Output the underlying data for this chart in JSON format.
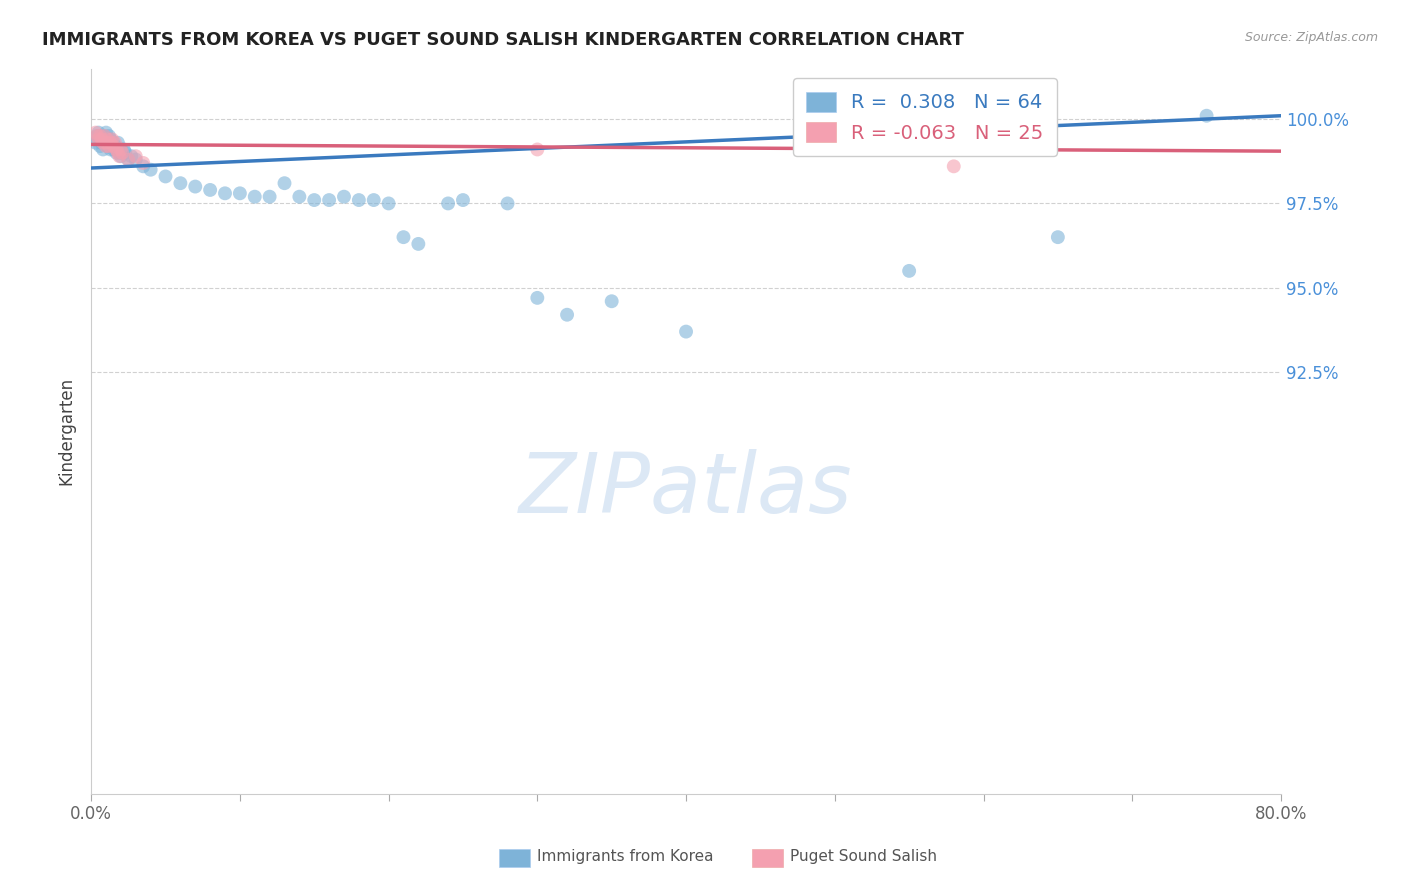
{
  "title": "IMMIGRANTS FROM KOREA VS PUGET SOUND SALISH KINDERGARTEN CORRELATION CHART",
  "source_text": "Source: ZipAtlas.com",
  "ylabel": "Kindergarten",
  "legend_label1": "Immigrants from Korea",
  "legend_label2": "Puget Sound Salish",
  "R1": 0.308,
  "N1": 64,
  "R2": -0.063,
  "N2": 25,
  "xlim": [
    0.0,
    80.0
  ],
  "ylim": [
    80.0,
    101.5
  ],
  "ytick_positions": [
    92.5,
    95.0,
    97.5,
    100.0
  ],
  "ytick_labels": [
    "92.5%",
    "95.0%",
    "97.5%",
    "100.0%"
  ],
  "xticks": [
    0.0,
    10.0,
    20.0,
    30.0,
    40.0,
    50.0,
    60.0,
    70.0,
    80.0
  ],
  "xtick_labels": [
    "0.0%",
    "",
    "",
    "",
    "",
    "",
    "",
    "",
    "80.0%"
  ],
  "blue_color": "#7eb3d8",
  "pink_color": "#f4a0b0",
  "blue_line_color": "#3a7abf",
  "pink_line_color": "#d9607a",
  "grid_color": "#cccccc",
  "title_color": "#222222",
  "axis_label_color": "#444444",
  "right_tick_color": "#4a90d9",
  "watermark_color": "#dce8f5",
  "blue_x": [
    0.3,
    0.4,
    0.5,
    0.5,
    0.6,
    0.6,
    0.7,
    0.8,
    0.8,
    0.9,
    1.0,
    1.0,
    1.1,
    1.1,
    1.2,
    1.2,
    1.3,
    1.3,
    1.4,
    1.5,
    1.5,
    1.6,
    1.7,
    1.8,
    1.8,
    1.9,
    2.0,
    2.0,
    2.1,
    2.2,
    2.3,
    2.5,
    2.7,
    3.0,
    3.5,
    4.0,
    5.0,
    6.0,
    7.0,
    8.0,
    9.0,
    10.0,
    11.0,
    12.0,
    13.0,
    14.0,
    15.0,
    16.0,
    17.0,
    18.0,
    19.0,
    20.0,
    21.0,
    22.0,
    24.0,
    25.0,
    28.0,
    30.0,
    32.0,
    35.0,
    40.0,
    55.0,
    65.0,
    75.0
  ],
  "blue_y": [
    99.3,
    99.5,
    99.4,
    99.6,
    99.2,
    99.5,
    99.3,
    99.1,
    99.4,
    99.5,
    99.3,
    99.6,
    99.2,
    99.4,
    99.3,
    99.5,
    99.1,
    99.4,
    99.2,
    99.3,
    99.1,
    99.2,
    99.0,
    99.1,
    99.3,
    99.0,
    99.1,
    98.9,
    99.0,
    99.1,
    99.0,
    98.8,
    98.9,
    98.8,
    98.6,
    98.5,
    98.3,
    98.1,
    98.0,
    97.9,
    97.8,
    97.8,
    97.7,
    97.7,
    98.1,
    97.7,
    97.6,
    97.6,
    97.7,
    97.6,
    97.6,
    97.5,
    96.5,
    96.3,
    97.5,
    97.6,
    97.5,
    94.7,
    94.2,
    94.6,
    93.7,
    95.5,
    96.5,
    100.1
  ],
  "pink_x": [
    0.3,
    0.4,
    0.5,
    0.6,
    0.7,
    0.8,
    0.9,
    1.0,
    1.0,
    1.1,
    1.2,
    1.3,
    1.4,
    1.5,
    1.6,
    1.7,
    1.8,
    1.9,
    2.0,
    2.1,
    2.5,
    3.0,
    3.5,
    30.0,
    58.0
  ],
  "pink_y": [
    99.6,
    99.5,
    99.4,
    99.5,
    99.4,
    99.3,
    99.5,
    99.3,
    99.2,
    99.4,
    99.2,
    99.3,
    99.4,
    99.2,
    99.3,
    99.1,
    99.0,
    98.9,
    99.1,
    99.0,
    98.8,
    98.9,
    98.7,
    99.1,
    98.6
  ],
  "blue_trend_x": [
    0.0,
    80.0
  ],
  "blue_trend_y": [
    98.55,
    100.1
  ],
  "pink_trend_x": [
    0.0,
    80.0
  ],
  "pink_trend_y": [
    99.25,
    99.05
  ]
}
